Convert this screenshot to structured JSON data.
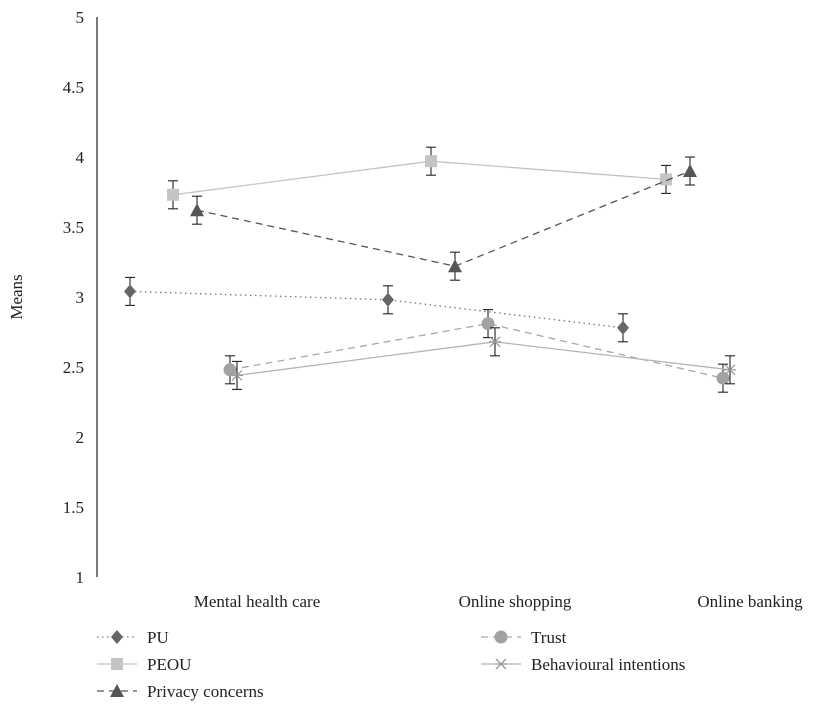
{
  "chart_data": {
    "type": "line",
    "title": "",
    "xlabel": "",
    "ylabel": "Means",
    "ylim": [
      1,
      5
    ],
    "yticks": [
      "1",
      "1.5",
      "2",
      "2.5",
      "3",
      "3.5",
      "4",
      "4.5",
      "5"
    ],
    "categories": [
      "Mental health care",
      "Online shopping",
      "Online banking"
    ],
    "error_bar": 0.1,
    "grid": false,
    "legend": "bottom",
    "series": [
      {
        "name": "PU",
        "values": [
          3.04,
          2.98,
          2.78
        ],
        "marker": "diamond",
        "dash": "dotted",
        "color": "#666666",
        "line_color": "#777777"
      },
      {
        "name": "PEOU",
        "values": [
          3.73,
          3.97,
          3.84
        ],
        "marker": "square",
        "dash": "solid",
        "color": "#c4c4c4",
        "line_color": "#c4c4c4"
      },
      {
        "name": "Privacy concerns",
        "values": [
          3.62,
          3.22,
          3.9
        ],
        "marker": "triangle",
        "dash": "dashed",
        "color": "#555555",
        "line_color": "#555555"
      },
      {
        "name": "Trust",
        "values": [
          2.48,
          2.81,
          2.42
        ],
        "marker": "circle",
        "dash": "dashed",
        "color": "#a2a2a2",
        "line_color": "#a8a8a8"
      },
      {
        "name": "Behavioural intentions",
        "values": [
          2.44,
          2.68,
          2.48
        ],
        "marker": "asterisk",
        "dash": "solid",
        "color": "#9c9c9c",
        "line_color": "#b4b4b4"
      }
    ]
  }
}
